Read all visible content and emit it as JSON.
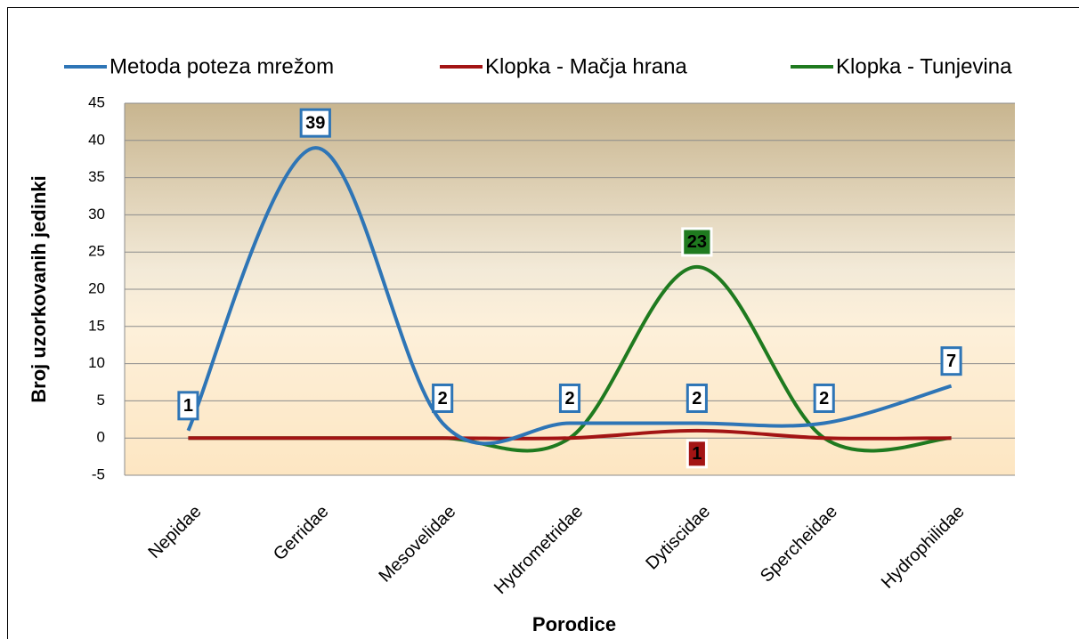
{
  "chart_data": {
    "type": "line",
    "x_label": "Porodice",
    "y_label": "Broj uzorkovanih jedinki",
    "categories": [
      "Nepidae",
      "Gerridae",
      "Mesovelidae",
      "Hydrometridae",
      "Dytiscidae",
      "Spercheidae",
      "Hydrophilidae"
    ],
    "series": [
      {
        "name": "Metoda poteza mrežom",
        "color": "#2e75b6",
        "values": [
          1,
          39,
          2,
          2,
          2,
          2,
          7
        ]
      },
      {
        "name": "Klopka - Mačja hrana",
        "color": "#a31414",
        "values": [
          0,
          0,
          0,
          0,
          1,
          0,
          0
        ]
      },
      {
        "name": "Klopka - Tunjevina",
        "color": "#1f7a1f",
        "values": [
          0,
          0,
          0,
          0,
          23,
          0,
          0
        ]
      }
    ],
    "ylim": [
      -5,
      45
    ],
    "yticks": [
      -5,
      0,
      5,
      10,
      15,
      20,
      25,
      30,
      35,
      40,
      45
    ],
    "grid": true,
    "legend": "top",
    "smooth": true
  }
}
